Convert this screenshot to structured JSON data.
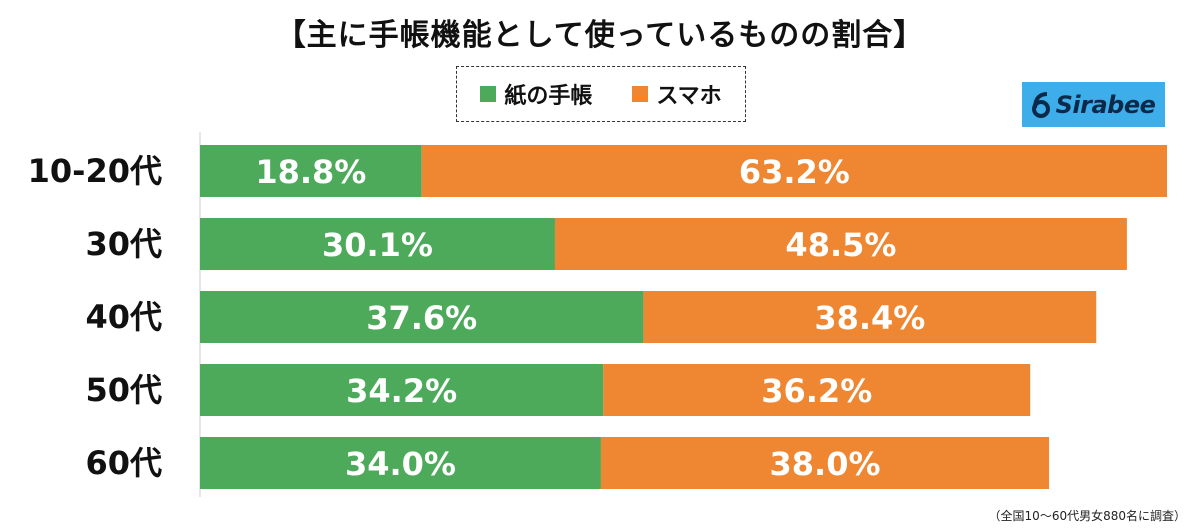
{
  "title": "【主に手帳機能として使っているものの割合】",
  "logo": {
    "text": "Sirabee",
    "color": "#3daee9"
  },
  "note": "（全国10〜60代男女880名に調査）",
  "chart_data": {
    "type": "bar",
    "orientation": "horizontal",
    "stacked": true,
    "categories": [
      "10-20代",
      "30代",
      "40代",
      "50代",
      "60代"
    ],
    "series": [
      {
        "name": "紙の手帳",
        "color": "#4eaa5b",
        "values": [
          18.8,
          30.1,
          37.6,
          34.2,
          34.0
        ],
        "labels": [
          "18.8%",
          "30.1%",
          "37.6%",
          "34.2%",
          "34.0%"
        ]
      },
      {
        "name": "スマホ",
        "color": "#ee8632",
        "values": [
          63.2,
          48.5,
          38.4,
          36.2,
          38.0
        ],
        "labels": [
          "63.2%",
          "48.5%",
          "38.4%",
          "36.2%",
          "38.0%"
        ]
      }
    ],
    "xlim": [
      0,
      82
    ],
    "grid": false,
    "legend_position": "top-center"
  }
}
